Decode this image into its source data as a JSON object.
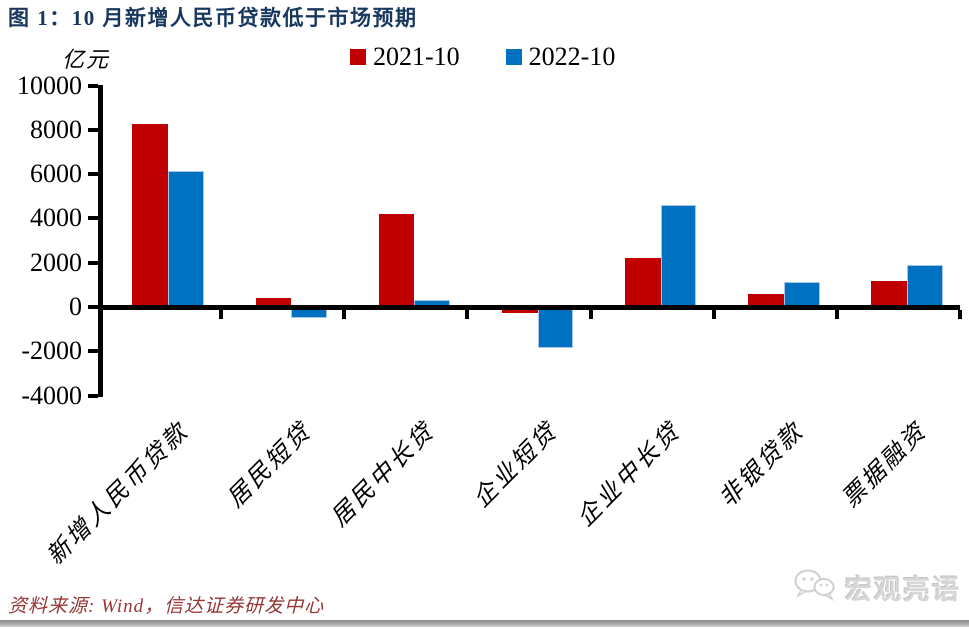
{
  "header": {
    "title": "图 1：10 月新增人民币贷款低于市场预期"
  },
  "chart_data": {
    "type": "bar",
    "title": "图 1：10 月新增人民币贷款低于市场预期",
    "unit": "亿元",
    "categories": [
      "新增人民币贷款",
      "居民短贷",
      "居民中长贷",
      "企业短贷",
      "企业中长贷",
      "非银贷款",
      "票据融资"
    ],
    "series": [
      {
        "name": "2021-10",
        "color": "#C00000",
        "values": [
          8262,
          426,
          4221,
          -288,
          2190,
          583,
          1160
        ]
      },
      {
        "name": "2022-10",
        "color": "#0070C0",
        "values": [
          6152,
          -512,
          332,
          -1843,
          4623,
          1140,
          1905
        ]
      }
    ],
    "ylim": [
      -4000,
      10000
    ],
    "ytick_step": 2000,
    "yticks": [
      10000,
      8000,
      6000,
      4000,
      2000,
      0,
      -2000,
      -4000
    ],
    "grid": false,
    "legend_position": "top-center",
    "colors": {
      "title": "#17375E",
      "axis": "#000000",
      "source_text": "#943634",
      "watermark": "#D6D6D6"
    }
  },
  "footer": {
    "source": "资料来源: Wind，信达证券研发中心",
    "watermark": "宏观亮语"
  },
  "icons": {
    "wechat_logo": "wechat-bubbles-icon"
  }
}
